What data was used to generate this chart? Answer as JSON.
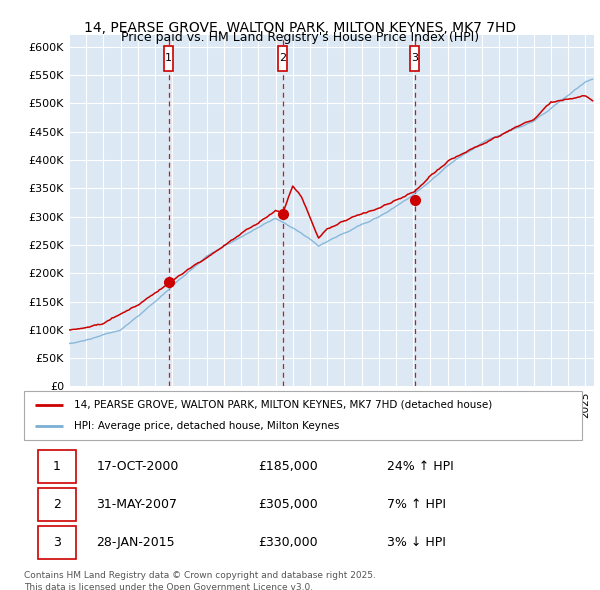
{
  "title": "14, PEARSE GROVE, WALTON PARK, MILTON KEYNES, MK7 7HD",
  "subtitle": "Price paid vs. HM Land Registry's House Price Index (HPI)",
  "background_color": "#dce9f5",
  "grid_color": "#ffffff",
  "ylim": [
    0,
    620000
  ],
  "yticks": [
    0,
    50000,
    100000,
    150000,
    200000,
    250000,
    300000,
    350000,
    400000,
    450000,
    500000,
    550000,
    600000
  ],
  "ytick_labels": [
    "£0",
    "£50K",
    "£100K",
    "£150K",
    "£200K",
    "£250K",
    "£300K",
    "£350K",
    "£400K",
    "£450K",
    "£500K",
    "£550K",
    "£600K"
  ],
  "xlim_start": 1995.0,
  "xlim_end": 2025.5,
  "sale1_date": 2000.79,
  "sale1_price": 185000,
  "sale1_label": "1",
  "sale1_text": "17-OCT-2000",
  "sale1_pct": "24% ↑ HPI",
  "sale2_date": 2007.41,
  "sale2_price": 305000,
  "sale2_label": "2",
  "sale2_text": "31-MAY-2007",
  "sale2_pct": "7% ↑ HPI",
  "sale3_date": 2015.08,
  "sale3_price": 330000,
  "sale3_label": "3",
  "sale3_text": "28-JAN-2015",
  "sale3_pct": "3% ↓ HPI",
  "legend_label_red": "14, PEARSE GROVE, WALTON PARK, MILTON KEYNES, MK7 7HD (detached house)",
  "legend_label_blue": "HPI: Average price, detached house, Milton Keynes",
  "footer": "Contains HM Land Registry data © Crown copyright and database right 2025.\nThis data is licensed under the Open Government Licence v3.0.",
  "red_color": "#cc0000",
  "blue_color": "#7bafd4"
}
